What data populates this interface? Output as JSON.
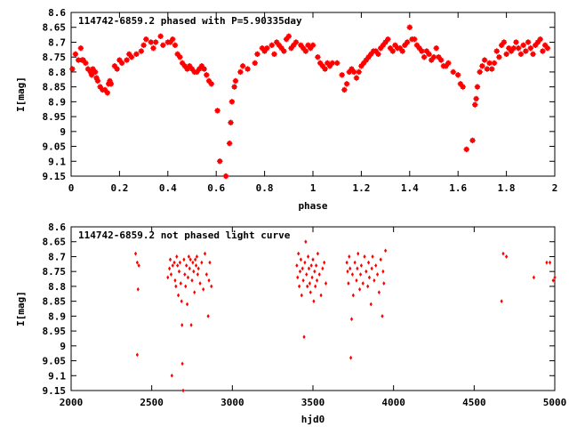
{
  "chart_data": [
    {
      "type": "scatter",
      "title": "114742-6859.2 phased with P=5.90335day",
      "xlabel": "phase",
      "ylabel": "I[mag]",
      "xlim": [
        0,
        2
      ],
      "ylim": [
        8.6,
        9.15
      ],
      "y_inverted": true,
      "marker": "star",
      "color": "#ff0000",
      "xticks": [
        "0",
        "0.2",
        "0.4",
        "0.6",
        "0.8",
        "1",
        "1.2",
        "1.4",
        "1.6",
        "1.8",
        "2"
      ],
      "yticks": [
        "8.6",
        "8.65",
        "8.7",
        "8.75",
        "8.8",
        "8.85",
        "8.9",
        "8.95",
        "9",
        "9.05",
        "9.1",
        "9.15"
      ],
      "points": [
        [
          0.005,
          8.79
        ],
        [
          0.018,
          8.74
        ],
        [
          0.03,
          8.76
        ],
        [
          0.04,
          8.72
        ],
        [
          0.045,
          8.76
        ],
        [
          0.05,
          8.76
        ],
        [
          0.06,
          8.77
        ],
        [
          0.07,
          8.79
        ],
        [
          0.08,
          8.8
        ],
        [
          0.085,
          8.81
        ],
        [
          0.09,
          8.79
        ],
        [
          0.1,
          8.8
        ],
        [
          0.105,
          8.82
        ],
        [
          0.11,
          8.83
        ],
        [
          0.12,
          8.85
        ],
        [
          0.13,
          8.86
        ],
        [
          0.14,
          8.86
        ],
        [
          0.15,
          8.87
        ],
        [
          0.155,
          8.84
        ],
        [
          0.16,
          8.83
        ],
        [
          0.165,
          8.84
        ],
        [
          0.18,
          8.78
        ],
        [
          0.19,
          8.79
        ],
        [
          0.2,
          8.76
        ],
        [
          0.21,
          8.77
        ],
        [
          0.23,
          8.76
        ],
        [
          0.24,
          8.74
        ],
        [
          0.25,
          8.75
        ],
        [
          0.27,
          8.74
        ],
        [
          0.29,
          8.73
        ],
        [
          0.3,
          8.71
        ],
        [
          0.31,
          8.69
        ],
        [
          0.33,
          8.7
        ],
        [
          0.34,
          8.72
        ],
        [
          0.35,
          8.7
        ],
        [
          0.37,
          8.68
        ],
        [
          0.38,
          8.71
        ],
        [
          0.4,
          8.7
        ],
        [
          0.41,
          8.7
        ],
        [
          0.42,
          8.69
        ],
        [
          0.43,
          8.71
        ],
        [
          0.44,
          8.74
        ],
        [
          0.45,
          8.75
        ],
        [
          0.46,
          8.77
        ],
        [
          0.47,
          8.78
        ],
        [
          0.48,
          8.79
        ],
        [
          0.49,
          8.78
        ],
        [
          0.5,
          8.79
        ],
        [
          0.51,
          8.8
        ],
        [
          0.52,
          8.8
        ],
        [
          0.53,
          8.79
        ],
        [
          0.54,
          8.78
        ],
        [
          0.55,
          8.79
        ],
        [
          0.56,
          8.81
        ],
        [
          0.57,
          8.83
        ],
        [
          0.58,
          8.84
        ],
        [
          0.605,
          8.93
        ],
        [
          0.615,
          9.1
        ],
        [
          0.64,
          9.15
        ],
        [
          0.655,
          9.04
        ],
        [
          0.66,
          8.97
        ],
        [
          0.665,
          8.9
        ],
        [
          0.675,
          8.85
        ],
        [
          0.68,
          8.83
        ],
        [
          0.7,
          8.8
        ],
        [
          0.71,
          8.78
        ],
        [
          0.73,
          8.79
        ],
        [
          0.76,
          8.77
        ],
        [
          0.77,
          8.74
        ],
        [
          0.79,
          8.72
        ],
        [
          0.8,
          8.73
        ],
        [
          0.81,
          8.72
        ],
        [
          0.83,
          8.71
        ],
        [
          0.84,
          8.74
        ],
        [
          0.85,
          8.7
        ],
        [
          0.86,
          8.71
        ],
        [
          0.87,
          8.72
        ],
        [
          0.88,
          8.73
        ],
        [
          0.89,
          8.69
        ],
        [
          0.9,
          8.68
        ],
        [
          0.91,
          8.72
        ],
        [
          0.92,
          8.71
        ],
        [
          0.93,
          8.7
        ],
        [
          0.95,
          8.71
        ],
        [
          0.96,
          8.72
        ],
        [
          0.97,
          8.73
        ],
        [
          0.98,
          8.71
        ],
        [
          0.99,
          8.72
        ],
        [
          1.0,
          8.71
        ],
        [
          1.02,
          8.75
        ],
        [
          1.03,
          8.77
        ],
        [
          1.04,
          8.78
        ],
        [
          1.05,
          8.79
        ],
        [
          1.06,
          8.77
        ],
        [
          1.07,
          8.78
        ],
        [
          1.08,
          8.77
        ],
        [
          1.1,
          8.77
        ],
        [
          1.12,
          8.81
        ],
        [
          1.13,
          8.86
        ],
        [
          1.14,
          8.84
        ],
        [
          1.15,
          8.8
        ],
        [
          1.16,
          8.79
        ],
        [
          1.17,
          8.8
        ],
        [
          1.18,
          8.82
        ],
        [
          1.19,
          8.8
        ],
        [
          1.2,
          8.78
        ],
        [
          1.21,
          8.77
        ],
        [
          1.22,
          8.76
        ],
        [
          1.23,
          8.75
        ],
        [
          1.24,
          8.74
        ],
        [
          1.25,
          8.73
        ],
        [
          1.26,
          8.73
        ],
        [
          1.27,
          8.74
        ],
        [
          1.28,
          8.72
        ],
        [
          1.29,
          8.71
        ],
        [
          1.3,
          8.7
        ],
        [
          1.31,
          8.69
        ],
        [
          1.32,
          8.72
        ],
        [
          1.33,
          8.73
        ],
        [
          1.34,
          8.71
        ],
        [
          1.35,
          8.72
        ],
        [
          1.36,
          8.72
        ],
        [
          1.37,
          8.73
        ],
        [
          1.38,
          8.71
        ],
        [
          1.39,
          8.7
        ],
        [
          1.4,
          8.65
        ],
        [
          1.41,
          8.69
        ],
        [
          1.42,
          8.69
        ],
        [
          1.43,
          8.71
        ],
        [
          1.44,
          8.72
        ],
        [
          1.45,
          8.73
        ],
        [
          1.46,
          8.75
        ],
        [
          1.47,
          8.73
        ],
        [
          1.48,
          8.74
        ],
        [
          1.49,
          8.76
        ],
        [
          1.5,
          8.75
        ],
        [
          1.51,
          8.72
        ],
        [
          1.52,
          8.75
        ],
        [
          1.53,
          8.76
        ],
        [
          1.54,
          8.78
        ],
        [
          1.55,
          8.78
        ],
        [
          1.56,
          8.77
        ],
        [
          1.58,
          8.8
        ],
        [
          1.6,
          8.81
        ],
        [
          1.61,
          8.84
        ],
        [
          1.62,
          8.85
        ],
        [
          1.635,
          9.06
        ],
        [
          1.66,
          9.03
        ],
        [
          1.67,
          8.91
        ],
        [
          1.675,
          8.89
        ],
        [
          1.68,
          8.85
        ],
        [
          1.69,
          8.8
        ],
        [
          1.7,
          8.78
        ],
        [
          1.71,
          8.76
        ],
        [
          1.72,
          8.79
        ],
        [
          1.73,
          8.77
        ],
        [
          1.74,
          8.79
        ],
        [
          1.75,
          8.77
        ],
        [
          1.76,
          8.73
        ],
        [
          1.77,
          8.75
        ],
        [
          1.78,
          8.71
        ],
        [
          1.79,
          8.7
        ],
        [
          1.8,
          8.74
        ],
        [
          1.81,
          8.72
        ],
        [
          1.82,
          8.73
        ],
        [
          1.83,
          8.72
        ],
        [
          1.84,
          8.7
        ],
        [
          1.85,
          8.72
        ],
        [
          1.86,
          8.74
        ],
        [
          1.87,
          8.71
        ],
        [
          1.88,
          8.73
        ],
        [
          1.89,
          8.7
        ],
        [
          1.9,
          8.72
        ],
        [
          1.91,
          8.74
        ],
        [
          1.92,
          8.71
        ],
        [
          1.93,
          8.7
        ],
        [
          1.94,
          8.69
        ],
        [
          1.95,
          8.73
        ],
        [
          1.96,
          8.71
        ],
        [
          1.97,
          8.72
        ]
      ]
    },
    {
      "type": "scatter",
      "title": "114742-6859.2 not phased light curve",
      "xlabel": "hjd0",
      "ylabel": "I[mag]",
      "xlim": [
        2000,
        5000
      ],
      "ylim": [
        8.6,
        9.15
      ],
      "y_inverted": true,
      "marker": "diamond",
      "color": "#ff0000",
      "xticks": [
        "2000",
        "2500",
        "3000",
        "3500",
        "4000",
        "4500",
        "5000"
      ],
      "yticks": [
        "8.6",
        "8.65",
        "8.7",
        "8.75",
        "8.8",
        "8.85",
        "8.9",
        "8.95",
        "9",
        "9.05",
        "9.1",
        "9.15"
      ],
      "points": [
        [
          2400,
          8.69
        ],
        [
          2410,
          8.72
        ],
        [
          2420,
          8.73
        ],
        [
          2415,
          8.81
        ],
        [
          2410,
          9.03
        ],
        [
          2600,
          8.77
        ],
        [
          2610,
          8.74
        ],
        [
          2615,
          8.71
        ],
        [
          2620,
          8.76
        ],
        [
          2625,
          9.1
        ],
        [
          2630,
          8.73
        ],
        [
          2640,
          8.72
        ],
        [
          2645,
          8.78
        ],
        [
          2650,
          8.8
        ],
        [
          2655,
          8.7
        ],
        [
          2660,
          8.73
        ],
        [
          2665,
          8.83
        ],
        [
          2670,
          8.75
        ],
        [
          2675,
          8.72
        ],
        [
          2680,
          8.79
        ],
        [
          2685,
          8.85
        ],
        [
          2688,
          8.93
        ],
        [
          2690,
          9.06
        ],
        [
          2695,
          9.15
        ],
        [
          2700,
          8.71
        ],
        [
          2705,
          8.76
        ],
        [
          2710,
          8.8
        ],
        [
          2715,
          8.73
        ],
        [
          2720,
          8.86
        ],
        [
          2725,
          8.77
        ],
        [
          2730,
          8.7
        ],
        [
          2735,
          8.74
        ],
        [
          2740,
          8.71
        ],
        [
          2745,
          8.93
        ],
        [
          2750,
          8.78
        ],
        [
          2755,
          8.72
        ],
        [
          2760,
          8.75
        ],
        [
          2765,
          8.82
        ],
        [
          2770,
          8.71
        ],
        [
          2775,
          8.73
        ],
        [
          2780,
          8.7
        ],
        [
          2785,
          8.76
        ],
        [
          2790,
          8.74
        ],
        [
          2800,
          8.79
        ],
        [
          2810,
          8.72
        ],
        [
          2820,
          8.81
        ],
        [
          2830,
          8.69
        ],
        [
          2840,
          8.76
        ],
        [
          2850,
          8.9
        ],
        [
          2855,
          8.78
        ],
        [
          2860,
          8.72
        ],
        [
          2870,
          8.8
        ],
        [
          3400,
          8.73
        ],
        [
          3405,
          8.77
        ],
        [
          3410,
          8.69
        ],
        [
          3415,
          8.8
        ],
        [
          3420,
          8.75
        ],
        [
          3425,
          8.71
        ],
        [
          3430,
          8.83
        ],
        [
          3435,
          8.74
        ],
        [
          3440,
          8.78
        ],
        [
          3445,
          8.97
        ],
        [
          3450,
          8.72
        ],
        [
          3455,
          8.65
        ],
        [
          3460,
          8.76
        ],
        [
          3465,
          8.8
        ],
        [
          3470,
          8.7
        ],
        [
          3475,
          8.74
        ],
        [
          3480,
          8.79
        ],
        [
          3485,
          8.82
        ],
        [
          3490,
          8.73
        ],
        [
          3495,
          8.77
        ],
        [
          3500,
          8.71
        ],
        [
          3505,
          8.85
        ],
        [
          3510,
          8.75
        ],
        [
          3515,
          8.8
        ],
        [
          3520,
          8.73
        ],
        [
          3525,
          8.78
        ],
        [
          3530,
          8.69
        ],
        [
          3540,
          8.76
        ],
        [
          3550,
          8.83
        ],
        [
          3560,
          8.74
        ],
        [
          3570,
          8.72
        ],
        [
          3580,
          8.79
        ],
        [
          3710,
          8.72
        ],
        [
          3715,
          8.75
        ],
        [
          3720,
          8.79
        ],
        [
          3725,
          8.7
        ],
        [
          3730,
          8.74
        ],
        [
          3735,
          9.04
        ],
        [
          3740,
          8.91
        ],
        [
          3745,
          8.76
        ],
        [
          3750,
          8.83
        ],
        [
          3760,
          8.72
        ],
        [
          3770,
          8.78
        ],
        [
          3775,
          8.74
        ],
        [
          3780,
          8.69
        ],
        [
          3790,
          8.81
        ],
        [
          3795,
          8.76
        ],
        [
          3800,
          8.73
        ],
        [
          3810,
          8.79
        ],
        [
          3820,
          8.7
        ],
        [
          3830,
          8.75
        ],
        [
          3840,
          8.8
        ],
        [
          3845,
          8.72
        ],
        [
          3850,
          8.77
        ],
        [
          3860,
          8.86
        ],
        [
          3865,
          8.74
        ],
        [
          3870,
          8.7
        ],
        [
          3880,
          8.78
        ],
        [
          3890,
          8.73
        ],
        [
          3900,
          8.76
        ],
        [
          3910,
          8.82
        ],
        [
          3920,
          8.71
        ],
        [
          3930,
          8.9
        ],
        [
          3935,
          8.75
        ],
        [
          3940,
          8.79
        ],
        [
          3950,
          8.68
        ],
        [
          4670,
          8.85
        ],
        [
          4680,
          8.69
        ],
        [
          4700,
          8.7
        ],
        [
          4870,
          8.77
        ],
        [
          4950,
          8.72
        ],
        [
          4970,
          8.72
        ],
        [
          4990,
          8.78
        ],
        [
          5000,
          8.77
        ]
      ]
    }
  ]
}
